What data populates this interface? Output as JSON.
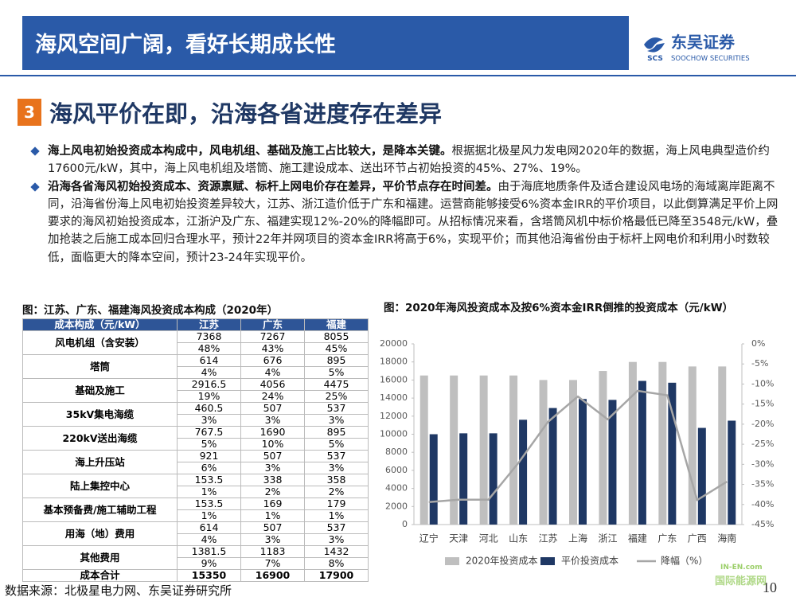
{
  "header": {
    "title": "海风空间广阔，看好长期成长性",
    "logo_text": "东吴证券",
    "logo_sub": "SOOCHOW SECURITIES",
    "logo_mark": "SCS"
  },
  "section": {
    "number": "3",
    "title": "海风平价在即，沿海各省进度存在差异"
  },
  "bullets": [
    {
      "bold": "海上风电初始投资成本构成中，风电机组、基础及施工占比较大，是降本关键。",
      "text": "根据据北极星风力发电网2020年的数据，海上风电典型造价约17600元/kW，其中，海上风电机组及塔筒、施工建设成本、送出环节占初始投资的45%、27%、19%。"
    },
    {
      "bold": "沿海各省海风初始投资成本、资源禀赋、标杆上网电价存在差异，平价节点存在时间差。",
      "text": "由于海底地质条件及适合建设风电场的海域离岸距离不同，沿海省份海上风电初始投资差异较大，江苏、浙江造价低于广东和福建。运营商能够接受6%资本金IRR的平价项目，以此倒算满足平价上网要求的海风初始投资成本，江浙沪及广东、福建实现12%-20%的降幅即可。从招标情况来看，含塔筒风机中标价格最低已降至3548元/kW，叠加抢装之后施工成本回归合理水平，预计22年并网项目的资本金IRR将高于6%，实现平价；而其他沿海省份由于标杆上网电价和利用小时数较低，面临更大的降本空间，预计23-24年实现平价。"
    }
  ],
  "table": {
    "caption": "图：江苏、广东、福建海风投资成本构成（2020年）",
    "columns": [
      "成本构成（元/kW）",
      "江苏",
      "广东",
      "福建"
    ],
    "rows": [
      {
        "label": "风电机组（含安装）",
        "costs": [
          "7368",
          "7267",
          "8055"
        ],
        "shares": [
          "48%",
          "43%",
          "45%"
        ]
      },
      {
        "label": "塔筒",
        "costs": [
          "614",
          "676",
          "895"
        ],
        "shares": [
          "4%",
          "4%",
          "5%"
        ]
      },
      {
        "label": "基础及施工",
        "costs": [
          "2916.5",
          "4056",
          "4475"
        ],
        "shares": [
          "19%",
          "24%",
          "25%"
        ]
      },
      {
        "label": "35kV集电海缆",
        "costs": [
          "460.5",
          "507",
          "537"
        ],
        "shares": [
          "3%",
          "3%",
          "3%"
        ]
      },
      {
        "label": "220kV送出海缆",
        "costs": [
          "767.5",
          "1690",
          "895"
        ],
        "shares": [
          "5%",
          "10%",
          "5%"
        ]
      },
      {
        "label": "海上升压站",
        "costs": [
          "921",
          "507",
          "537"
        ],
        "shares": [
          "6%",
          "3%",
          "3%"
        ]
      },
      {
        "label": "陆上集控中心",
        "costs": [
          "153.5",
          "338",
          "358"
        ],
        "shares": [
          "1%",
          "2%",
          "2%"
        ]
      },
      {
        "label": "基本预备费/施工辅助工程",
        "costs": [
          "153.5",
          "169",
          "179"
        ],
        "shares": [
          "1%",
          "1%",
          "1%"
        ]
      },
      {
        "label": "用海（地）费用",
        "costs": [
          "614",
          "507",
          "537"
        ],
        "shares": [
          "4%",
          "3%",
          "3%"
        ]
      },
      {
        "label": "其他费用",
        "costs": [
          "1381.5",
          "1183",
          "1432"
        ],
        "shares": [
          "9%",
          "7%",
          "8%"
        ]
      }
    ],
    "total": {
      "label": "成本合计",
      "costs": [
        "15350",
        "16900",
        "17900"
      ]
    }
  },
  "chart_data": {
    "type": "bar",
    "title": "图：2020年海风投资成本及按6%资本金IRR倒推的投资成本（元/kW）",
    "categories": [
      "辽宁",
      "天津",
      "河北",
      "山东",
      "江苏",
      "上海",
      "浙江",
      "福建",
      "广东",
      "广西",
      "海南"
    ],
    "series": [
      {
        "name": "2020年投资成本",
        "color": "#bfbfbf",
        "values": [
          16500,
          16500,
          16500,
          16500,
          16000,
          16000,
          17000,
          18000,
          18000,
          17500,
          17500
        ]
      },
      {
        "name": "平价投资成本",
        "color": "#1f3864",
        "values": [
          10000,
          10100,
          10100,
          11600,
          12900,
          13900,
          13800,
          15900,
          15700,
          10700,
          11500
        ]
      },
      {
        "name": "降幅（%）",
        "color": "#a6a6a6",
        "type": "line",
        "axis": "y2",
        "values": [
          -39.4,
          -38.8,
          -38.8,
          -29.7,
          -19.4,
          -13.1,
          -18.8,
          -11.7,
          -12.8,
          -38.9,
          -34.3
        ]
      }
    ],
    "ylim": [
      0,
      20000
    ],
    "yticks": [
      0,
      2000,
      4000,
      6000,
      8000,
      10000,
      12000,
      14000,
      16000,
      18000,
      20000
    ],
    "y2lim": [
      -45,
      0
    ],
    "y2ticks": [
      {
        "value": 0,
        "label": "0%"
      },
      {
        "value": -5,
        "label": "-5%"
      },
      {
        "value": -10,
        "label": "-10%"
      },
      {
        "value": -15,
        "label": "-15%"
      },
      {
        "value": -20,
        "label": "-20%"
      },
      {
        "value": -25,
        "label": "-25%"
      },
      {
        "value": -30,
        "label": "-30%"
      },
      {
        "value": -35,
        "label": "-35%"
      },
      {
        "value": -40,
        "label": "-40%"
      },
      {
        "value": -45,
        "label": "-45%"
      }
    ],
    "grid": false
  },
  "footer": {
    "source": "数据来源：北极星电力网、东吴证券研究所",
    "page": "10",
    "watermark": [
      "IN-EN.com",
      "国际能源网"
    ]
  }
}
